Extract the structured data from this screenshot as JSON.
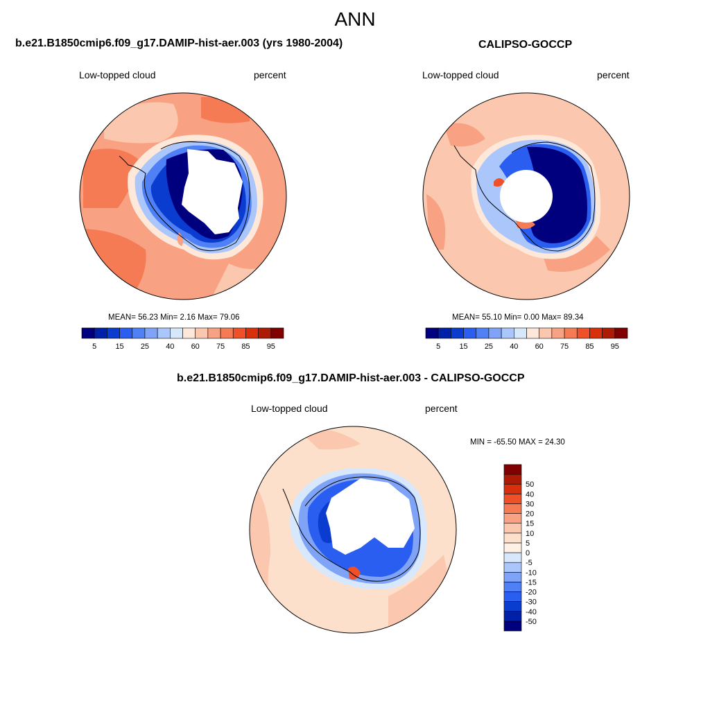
{
  "figure": {
    "season": "ANN"
  },
  "panels": [
    {
      "title": "b.e21.B1850cmip6.f09_g17.DAMIP-hist-aer.003 (yrs 1980-2004)",
      "left_label": "Low-topped cloud",
      "right_label": "percent",
      "stats": "MEAN=  56.23  Min=   2.16  Max=  79.06"
    },
    {
      "title": "CALIPSO-GOCCP",
      "left_label": "Low-topped cloud",
      "right_label": "percent",
      "stats": "MEAN=  55.10  Min=   0.00  Max=  89.34"
    },
    {
      "title": "b.e21.B1850cmip6.f09_g17.DAMIP-hist-aer.003 - CALIPSO-GOCCP",
      "left_label": "Low-topped cloud",
      "right_label": "percent",
      "stats": "MIN = -65.50 MAX =  24.30"
    }
  ],
  "colorbars": {
    "absolute": {
      "colors": [
        "#00007f",
        "#0020a8",
        "#0a3cd0",
        "#2a5ef0",
        "#4f80f5",
        "#7ea3f7",
        "#aac6fb",
        "#d8e8fc",
        "#fde8da",
        "#fbc7ae",
        "#f8a283",
        "#f57b55",
        "#ef5028",
        "#d8300c",
        "#ad1a05",
        "#800000"
      ],
      "ticks": [
        "5",
        "15",
        "25",
        "40",
        "60",
        "75",
        "85",
        "95"
      ]
    },
    "difference": {
      "colors": [
        "#00007f",
        "#0020a8",
        "#0a3cd0",
        "#2a5ef0",
        "#4f80f5",
        "#7ea3f7",
        "#aac6fb",
        "#d8e8fc",
        "#fff0e6",
        "#fde0cc",
        "#fbc7ae",
        "#f8a283",
        "#f57b55",
        "#ef5028",
        "#d8300c",
        "#ad1a05",
        "#800000"
      ],
      "ticks": [
        "-50",
        "-40",
        "-30",
        "-20",
        "-15",
        "-10",
        "-5",
        "0",
        "5",
        "10",
        "15",
        "20",
        "30",
        "40",
        "50"
      ]
    }
  }
}
